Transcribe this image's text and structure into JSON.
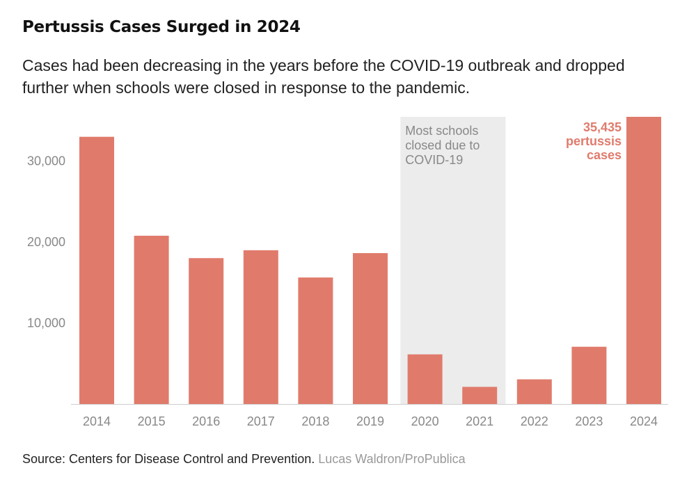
{
  "title": "Pertussis Cases Surged in 2024",
  "subtitle": "Cases had been decreasing in the years before the COVID-19 outbreak and dropped further when schools were closed in response to the pandemic.",
  "footer": {
    "source": "Source: Centers for Disease Control and Prevention.",
    "credit": "Lucas Waldron/ProPublica"
  },
  "colors": {
    "bar": "#e07b6c",
    "callout": "#e07b6c",
    "shade": "#ececec",
    "baseline": "#cccccc"
  },
  "chart_data": {
    "type": "bar",
    "categories": [
      "2014",
      "2015",
      "2016",
      "2017",
      "2018",
      "2019",
      "2020",
      "2021",
      "2022",
      "2023",
      "2024"
    ],
    "values": [
      32971,
      20762,
      18000,
      18975,
      15609,
      18617,
      6124,
      2116,
      3044,
      7063,
      35435
    ],
    "ylim": [
      0,
      35435
    ],
    "yticks": [
      10000,
      20000,
      30000
    ],
    "ytick_labels": [
      "10,000",
      "20,000",
      "30,000"
    ],
    "grid": false,
    "shaded_period": {
      "from": "2020",
      "to": "2021",
      "label_lines": [
        "Most schools",
        "closed due to",
        "COVID-19"
      ]
    },
    "annotation": {
      "category": "2024",
      "lines": [
        "35,435",
        "pertussis",
        "cases"
      ]
    }
  }
}
